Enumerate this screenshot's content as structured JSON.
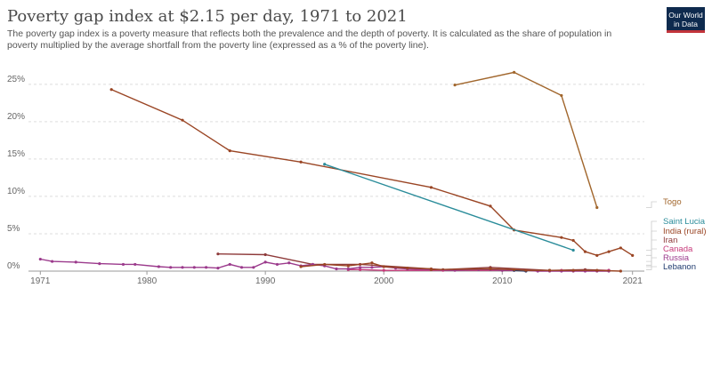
{
  "header": {
    "title": "Poverty gap index at $2.15 per day, 1971 to 2021",
    "subtitle": "The poverty gap index is a poverty measure that reflects both the prevalence and the depth of poverty. It is calculated as the share of population in poverty multiplied by the average shortfall from the poverty line (expressed as a % of the poverty line).",
    "logo_line1": "Our World",
    "logo_line2": "in Data"
  },
  "chart_data": {
    "type": "line",
    "title": "Poverty gap index at $2.15 per day, 1971 to 2021",
    "xlim": [
      1970,
      2022
    ],
    "ylim": [
      0,
      27
    ],
    "x_ticks": [
      1971,
      1980,
      1990,
      2000,
      2010,
      2021
    ],
    "x_tick_labels": [
      "1971",
      "1980",
      "1990",
      "2000",
      "2010",
      "2021"
    ],
    "y_ticks": [
      0,
      5,
      10,
      15,
      20,
      25
    ],
    "y_tick_labels": [
      "0%",
      "5%",
      "10%",
      "15%",
      "20%",
      "25%"
    ],
    "grid": "horizontal dashed",
    "legend_position": "right",
    "series": [
      {
        "name": "Togo",
        "color": "#a1662c",
        "x": [
          2006,
          2011,
          2015,
          2018
        ],
        "y": [
          24.9,
          26.6,
          23.5,
          8.5
        ]
      },
      {
        "name": "India (rural)",
        "color": "#9a4524",
        "x": [
          1977,
          1983,
          1987,
          1993,
          2004,
          2009,
          2011,
          2015,
          2016,
          2017,
          2018,
          2019,
          2020,
          2021
        ],
        "y": [
          24.3,
          20.2,
          16.1,
          14.6,
          11.2,
          8.7,
          5.5,
          4.5,
          4.1,
          2.6,
          2.1,
          2.6,
          3.1,
          2.1
        ]
      },
      {
        "name": "Saint Lucia",
        "color": "#2a8c9a",
        "x": [
          1995,
          2016
        ],
        "y": [
          14.3,
          2.8
        ]
      },
      {
        "name": "Iran",
        "color": "#8e3a3a",
        "x": [
          1986,
          1990,
          1994,
          1998,
          2005,
          2009,
          2014,
          2017,
          2019
        ],
        "y": [
          2.3,
          2.2,
          0.9,
          0.9,
          0.2,
          0.5,
          0.1,
          0.2,
          0.1
        ]
      },
      {
        "name": "Canada",
        "color": "#c73a7a",
        "x": [
          1997,
          1998,
          2000,
          2005,
          2010,
          2015,
          2019
        ],
        "y": [
          0.2,
          0.2,
          0.1,
          0.1,
          0.1,
          0.1,
          0.1
        ]
      },
      {
        "name": "Russia",
        "color": "#9b3a8c",
        "x": [
          1971,
          1972,
          1974,
          1976,
          1978,
          1979,
          1981,
          1982,
          1983,
          1984,
          1985,
          1986,
          1987,
          1988,
          1989,
          1990,
          1991,
          1992,
          1993,
          1994,
          1995,
          1996,
          1997,
          1998,
          1999,
          2000,
          2001,
          2002,
          2004,
          2006,
          2008,
          2009,
          2010,
          2011,
          2012,
          2013,
          2014,
          2015,
          2016,
          2017,
          2018,
          2019
        ],
        "y": [
          1.6,
          1.3,
          1.2,
          1.0,
          0.9,
          0.9,
          0.6,
          0.5,
          0.5,
          0.5,
          0.5,
          0.4,
          0.9,
          0.5,
          0.5,
          1.2,
          0.9,
          1.1,
          0.7,
          0.9,
          0.7,
          0.3,
          0.3,
          0.5,
          0.5,
          0.6,
          0.4,
          0.3,
          0.2,
          0.1,
          0.2,
          0.2,
          0.1,
          0.1,
          0.1,
          0.0,
          0.0,
          0.0,
          0.0,
          0.0,
          0.0,
          0.0
        ]
      },
      {
        "name": "Lebanon",
        "color": "#1f3a6e",
        "x": [
          2011,
          2012
        ],
        "y": [
          0.1,
          0.0
        ]
      },
      {
        "name": "",
        "color": "#9a4524",
        "x": [
          1993,
          1995,
          1997,
          1999,
          2000,
          2002,
          2004
        ],
        "y": [
          0.6,
          0.9,
          0.7,
          1.1,
          0.6,
          0.4,
          0.3
        ]
      },
      {
        "name": "",
        "color": "#9a4524",
        "x": [
          2004,
          2009,
          2011,
          2012,
          2014,
          2016,
          2018,
          2020
        ],
        "y": [
          0.2,
          0.3,
          0.2,
          0.1,
          0.1,
          0.1,
          0.1,
          0.0
        ]
      }
    ]
  },
  "legend": [
    {
      "label": "Togo",
      "color": "#a1662c"
    },
    {
      "label": "Saint Lucia",
      "color": "#2a8c9a"
    },
    {
      "label": "India (rural)",
      "color": "#9a4524"
    },
    {
      "label": "Iran",
      "color": "#8e3a3a"
    },
    {
      "label": "Canada",
      "color": "#c73a7a"
    },
    {
      "label": "Russia",
      "color": "#9b3a8c"
    },
    {
      "label": "Lebanon",
      "color": "#1f3a6e"
    }
  ]
}
